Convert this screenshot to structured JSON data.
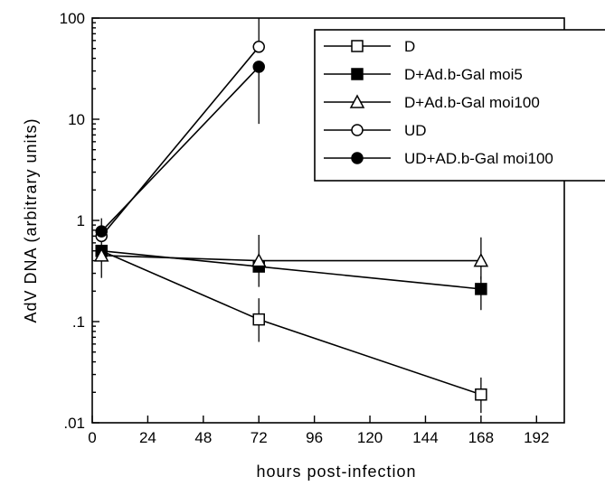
{
  "chart_data": {
    "type": "line",
    "xlabel": "hours  post-infection",
    "ylabel": "AdV  DNA  (arbitrary  units)",
    "x_ticks": [
      0,
      24,
      48,
      72,
      96,
      120,
      144,
      168,
      192
    ],
    "x_tick_labels": [
      "0",
      "24",
      "48",
      "72",
      "96",
      "120",
      "144",
      "168",
      "192"
    ],
    "y_ticks": [
      0.01,
      0.1,
      1,
      10,
      100
    ],
    "y_tick_labels": [
      ".01",
      ".1",
      "1",
      "10",
      "100"
    ],
    "xlim": [
      0,
      204
    ],
    "ylim": [
      0.01,
      100
    ],
    "y_scale": "log",
    "legend_position": "top-right",
    "series": [
      {
        "name": "D",
        "marker": "open-square",
        "x": [
          4,
          72,
          168
        ],
        "y": [
          0.5,
          0.105,
          0.019
        ],
        "err_low": [
          null,
          0.063,
          0.0125
        ],
        "err_high": [
          null,
          0.17,
          0.028
        ]
      },
      {
        "name": "D+Ad.b-Gal moi5",
        "marker": "filled-square",
        "x": [
          4,
          72,
          168
        ],
        "y": [
          0.5,
          0.35,
          0.21
        ],
        "err_low": [
          null,
          null,
          0.13
        ],
        "err_high": [
          null,
          null,
          0.28
        ]
      },
      {
        "name": "D+Ad.b-Gal moi100",
        "marker": "open-triangle",
        "x": [
          4,
          72,
          168
        ],
        "y": [
          0.45,
          0.4,
          0.4
        ],
        "err_low": [
          0.27,
          0.22,
          0.26
        ],
        "err_high": [
          null,
          0.72,
          0.68
        ]
      },
      {
        "name": "UD",
        "marker": "open-circle",
        "x": [
          4,
          72
        ],
        "y": [
          0.7,
          52
        ],
        "err_low": [
          null,
          null
        ],
        "err_high": [
          null,
          100
        ]
      },
      {
        "name": "UD+AD.b-Gal moi100",
        "marker": "filled-circle",
        "x": [
          4,
          72
        ],
        "y": [
          0.78,
          33
        ],
        "err_low": [
          0.42,
          9
        ],
        "err_high": [
          1.05,
          null
        ]
      }
    ]
  }
}
